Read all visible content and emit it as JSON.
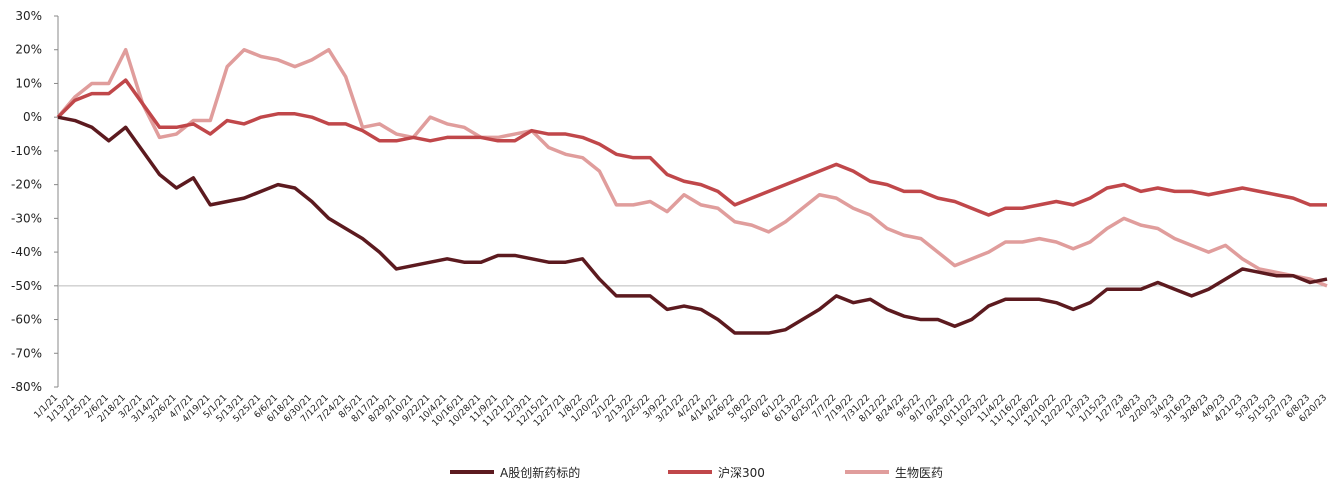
{
  "chart_data": {
    "type": "line",
    "categories": [
      "1/1/21",
      "1/13/21",
      "1/25/21",
      "2/6/21",
      "2/18/21",
      "3/2/21",
      "3/14/21",
      "3/26/21",
      "4/7/21",
      "4/19/21",
      "5/1/21",
      "5/13/21",
      "5/25/21",
      "6/6/21",
      "6/18/21",
      "6/30/21",
      "7/12/21",
      "7/24/21",
      "8/5/21",
      "8/17/21",
      "8/29/21",
      "9/10/21",
      "9/22/21",
      "10/4/21",
      "10/16/21",
      "10/28/21",
      "11/9/21",
      "11/21/21",
      "12/3/21",
      "12/15/21",
      "12/27/21",
      "1/8/22",
      "1/20/22",
      "2/1/22",
      "2/13/22",
      "2/25/22",
      "3/9/22",
      "3/21/22",
      "4/2/22",
      "4/14/22",
      "4/26/22",
      "5/8/22",
      "5/20/22",
      "6/1/22",
      "6/13/22",
      "6/25/22",
      "7/7/22",
      "7/19/22",
      "7/31/22",
      "8/12/22",
      "8/24/22",
      "9/5/22",
      "9/17/22",
      "9/29/22",
      "10/11/22",
      "10/23/22",
      "11/4/22",
      "11/16/22",
      "11/28/22",
      "12/10/22",
      "12/22/22",
      "1/3/23",
      "1/15/23",
      "1/27/23",
      "2/8/23",
      "2/20/23",
      "3/4/23",
      "3/16/23",
      "3/28/23",
      "4/9/23",
      "4/21/23",
      "5/3/23",
      "5/15/23",
      "5/27/23",
      "6/8/23",
      "6/20/23"
    ],
    "series": [
      {
        "name": "A股创新药标的",
        "color": "#5c1a1f",
        "values": [
          0,
          -1,
          -3,
          -7,
          -3,
          -10,
          -17,
          -21,
          -18,
          -26,
          -25,
          -24,
          -22,
          -20,
          -21,
          -25,
          -30,
          -33,
          -36,
          -40,
          -45,
          -44,
          -43,
          -42,
          -43,
          -43,
          -41,
          -41,
          -42,
          -43,
          -43,
          -42,
          -48,
          -53,
          -53,
          -53,
          -57,
          -56,
          -57,
          -60,
          -64,
          -64,
          -64,
          -63,
          -60,
          -57,
          -53,
          -55,
          -54,
          -57,
          -59,
          -60,
          -60,
          -62,
          -60,
          -56,
          -54,
          -54,
          -54,
          -55,
          -57,
          -55,
          -51,
          -51,
          -51,
          -49,
          -51,
          -53,
          -51,
          -48,
          -45,
          -46,
          -47,
          -47,
          -49,
          -48
        ]
      },
      {
        "name": "沪深300",
        "color": "#c0474a",
        "values": [
          0,
          5,
          7,
          7,
          11,
          4,
          -3,
          -3,
          -2,
          -5,
          -1,
          -2,
          0,
          1,
          1,
          0,
          -2,
          -2,
          -4,
          -7,
          -7,
          -6,
          -7,
          -6,
          -6,
          -6,
          -7,
          -7,
          -4,
          -5,
          -5,
          -6,
          -8,
          -11,
          -12,
          -12,
          -17,
          -19,
          -20,
          -22,
          -26,
          -24,
          -22,
          -20,
          -18,
          -16,
          -14,
          -16,
          -19,
          -20,
          -22,
          -22,
          -24,
          -25,
          -27,
          -29,
          -27,
          -27,
          -26,
          -25,
          -26,
          -24,
          -21,
          -20,
          -22,
          -21,
          -22,
          -22,
          -23,
          -22,
          -21,
          -22,
          -23,
          -24,
          -26,
          -26
        ]
      },
      {
        "name": "生物医药",
        "color": "#e09d9c",
        "values": [
          0,
          6,
          10,
          10,
          20,
          4,
          -6,
          -5,
          -1,
          -1,
          15,
          20,
          18,
          17,
          15,
          17,
          20,
          12,
          -3,
          -2,
          -5,
          -6,
          0,
          -2,
          -3,
          -6,
          -6,
          -5,
          -4,
          -9,
          -11,
          -12,
          -16,
          -26,
          -26,
          -25,
          -28,
          -23,
          -26,
          -27,
          -31,
          -32,
          -34,
          -31,
          -27,
          -23,
          -24,
          -27,
          -29,
          -33,
          -35,
          -36,
          -40,
          -44,
          -42,
          -40,
          -37,
          -37,
          -36,
          -37,
          -39,
          -37,
          -33,
          -30,
          -32,
          -33,
          -36,
          -38,
          -40,
          -38,
          -42,
          -45,
          -46,
          -47,
          -48,
          -50
        ]
      }
    ],
    "ylim": [
      -80,
      30
    ],
    "yticks": [
      {
        "value": 30,
        "label": "30%"
      },
      {
        "value": 20,
        "label": "20%"
      },
      {
        "value": 10,
        "label": "10%"
      },
      {
        "value": 0,
        "label": "0%"
      },
      {
        "value": -10,
        "label": "-10%"
      },
      {
        "value": -20,
        "label": "-20%"
      },
      {
        "value": -30,
        "label": "-30%"
      },
      {
        "value": -40,
        "label": "-40%"
      },
      {
        "value": -50,
        "label": "-50%"
      },
      {
        "value": -60,
        "label": "-60%"
      },
      {
        "value": -70,
        "label": "-70%"
      },
      {
        "value": -80,
        "label": "-80%"
      }
    ],
    "x_axis_at": -50,
    "legend": "bottom"
  }
}
